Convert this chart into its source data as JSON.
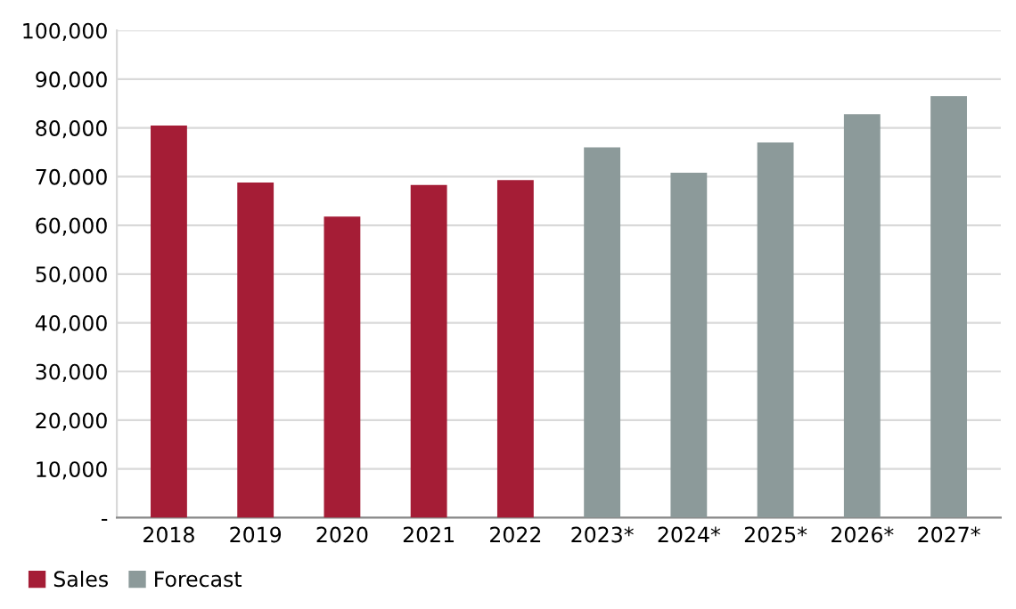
{
  "chart_data": {
    "type": "bar",
    "categories": [
      "2018",
      "2019",
      "2020",
      "2021",
      "2022",
      "2023*",
      "2024*",
      "2025*",
      "2026*",
      "2027*"
    ],
    "series": [
      {
        "name": "Sales",
        "color": "#a51d36",
        "values": [
          80500,
          68800,
          61800,
          68300,
          69300,
          null,
          null,
          null,
          null,
          null
        ]
      },
      {
        "name": "Forecast",
        "color": "#8c9a9a",
        "values": [
          null,
          null,
          null,
          null,
          null,
          76000,
          70800,
          77000,
          82800,
          86500
        ]
      }
    ],
    "ylim": [
      0,
      100000
    ],
    "yticks": [
      {
        "value": 0,
        "label": "-"
      },
      {
        "value": 10000,
        "label": "10,000"
      },
      {
        "value": 20000,
        "label": "20,000"
      },
      {
        "value": 30000,
        "label": "30,000"
      },
      {
        "value": 40000,
        "label": "40,000"
      },
      {
        "value": 50000,
        "label": "50,000"
      },
      {
        "value": 60000,
        "label": "60,000"
      },
      {
        "value": 70000,
        "label": "70,000"
      },
      {
        "value": 80000,
        "label": "80,000"
      },
      {
        "value": 90000,
        "label": "90,000"
      },
      {
        "value": 100000,
        "label": "100,000"
      }
    ],
    "grid": "y",
    "legend": "bottom left"
  }
}
